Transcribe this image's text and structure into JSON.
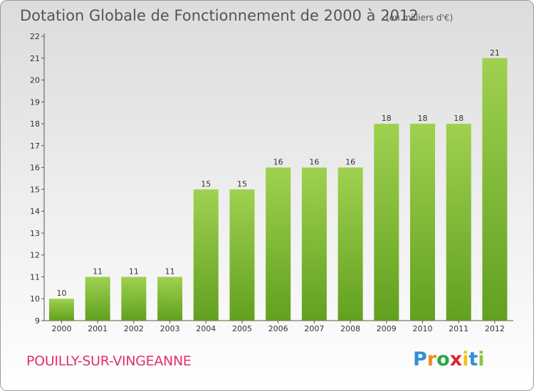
{
  "header": {
    "title": "Dotation Globale de Fonctionnement de 2000 à 2012",
    "subtitle": "(en milliers d'€)"
  },
  "footer": {
    "commune": "POUILLY-SUR-VINGEANNE",
    "logo_letters": [
      "P",
      "r",
      "o",
      "x",
      "i",
      "t",
      "i"
    ],
    "logo_colors": [
      "#2f8fd8",
      "#f08a1c",
      "#2aa845",
      "#d8282e",
      "#f2c017",
      "#2f8fd8",
      "#8bc43f"
    ]
  },
  "chart_data": {
    "type": "bar",
    "categories": [
      "2000",
      "2001",
      "2002",
      "2003",
      "2004",
      "2005",
      "2006",
      "2007",
      "2008",
      "2009",
      "2010",
      "2011",
      "2012"
    ],
    "values": [
      10,
      11,
      11,
      11,
      15,
      15,
      16,
      16,
      16,
      18,
      18,
      18,
      21
    ],
    "data_labels": [
      "10",
      "11",
      "11",
      "11",
      "15",
      "15",
      "16",
      "16",
      "16",
      "18",
      "18",
      "18",
      "21"
    ],
    "ylim": [
      9,
      22
    ],
    "yticks": [
      "9",
      "10",
      "11",
      "12",
      "13",
      "14",
      "15",
      "16",
      "17",
      "18",
      "19",
      "20",
      "21",
      "22"
    ],
    "grid": false,
    "bar_color_top": "#9fd14f",
    "bar_color_bottom": "#62a020"
  }
}
